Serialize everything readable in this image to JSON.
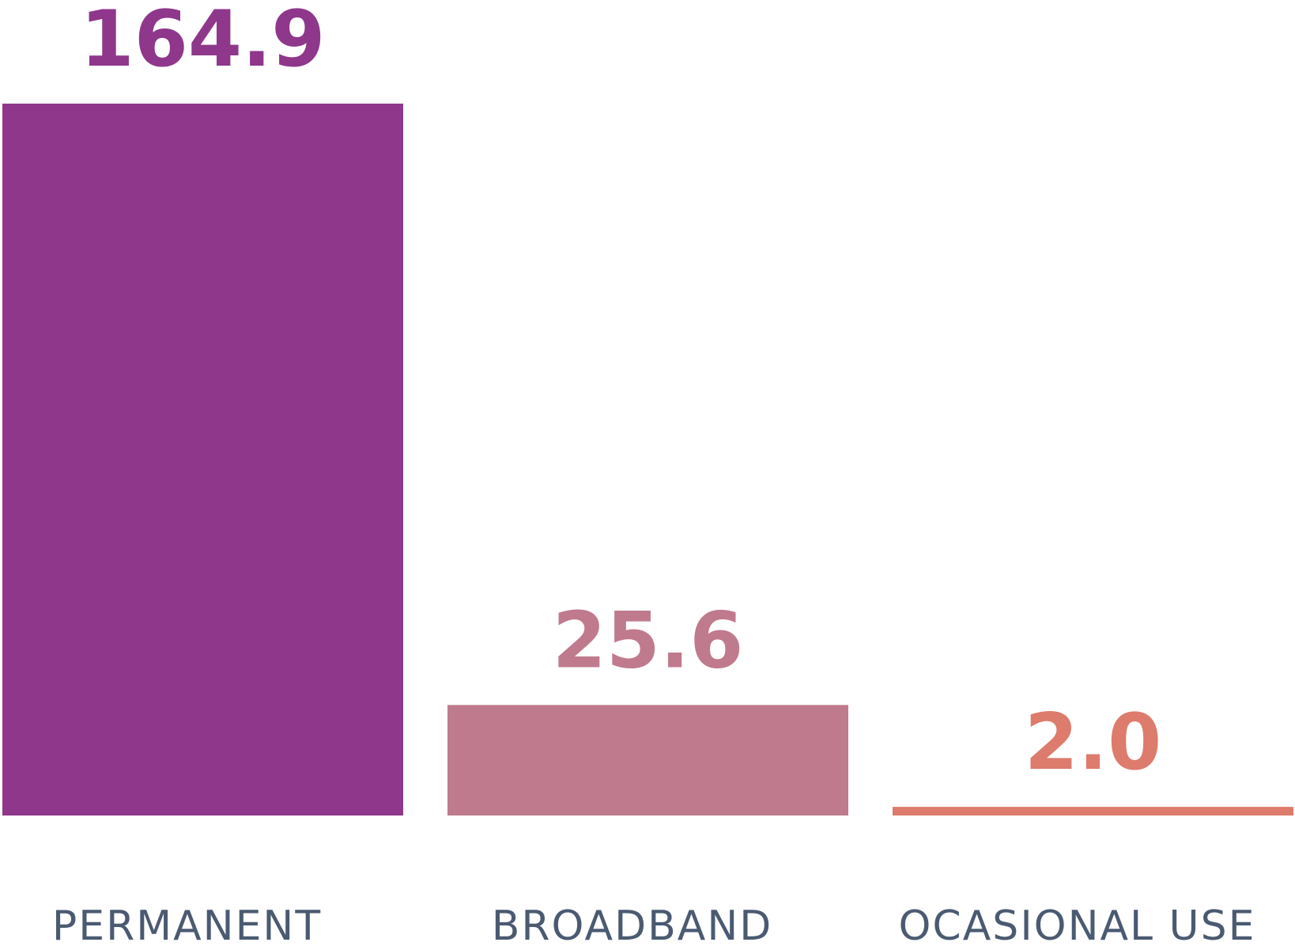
{
  "chart_data": {
    "type": "bar",
    "categories": [
      "PERMANENT",
      "BROADBAND",
      "OCASIONAL USE"
    ],
    "values": [
      164.9,
      25.6,
      2.0
    ],
    "value_labels": [
      "164.9",
      "25.6",
      "2.0"
    ],
    "colors": [
      "#8e378b",
      "#c07a8d",
      "#dd7b6c"
    ],
    "title": "",
    "xlabel": "",
    "ylabel": "",
    "ylim": [
      0,
      164.9
    ],
    "grid": false,
    "legend": "none"
  }
}
